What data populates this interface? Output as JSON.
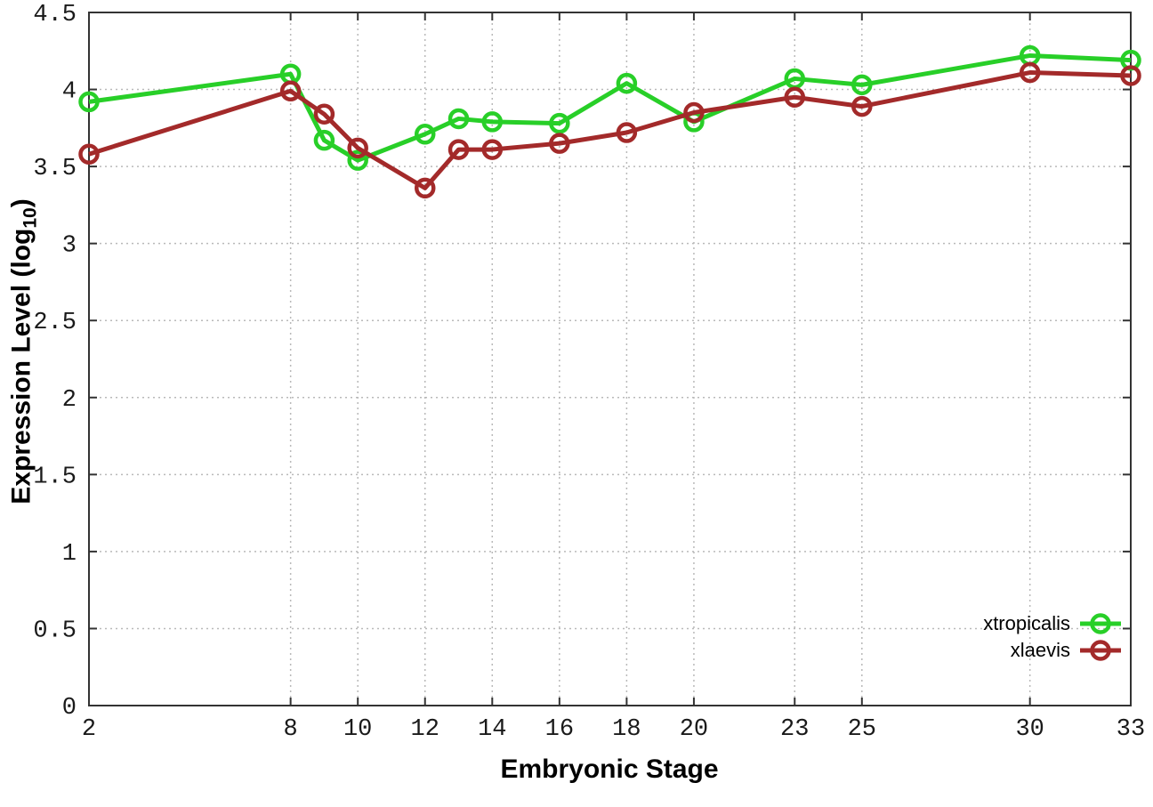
{
  "figure": {
    "xlabel": "Embryonic Stage",
    "ylabel_prefix": "Expression Level (log",
    "ylabel_sub": "10",
    "ylabel_suffix": ")",
    "background_color": "#ffffff",
    "border_color": "#333333",
    "grid_color": "#b9b9b9",
    "tick_label_color": "#1a1a1a"
  },
  "chart_data": {
    "type": "line",
    "title": "",
    "xlabel": "Embryonic Stage",
    "ylabel": "Expression Level (log10)",
    "x": [
      2,
      8,
      9,
      10,
      12,
      13,
      14,
      16,
      18,
      20,
      23,
      25,
      30,
      33
    ],
    "series": [
      {
        "name": "xtropicalis",
        "color": "#28cf28",
        "marker": "open-circle",
        "values": [
          3.92,
          4.1,
          3.67,
          3.54,
          3.71,
          3.81,
          3.79,
          3.78,
          4.04,
          3.79,
          4.07,
          4.03,
          4.22,
          4.19
        ]
      },
      {
        "name": "xlaevis",
        "color": "#a32a2a",
        "marker": "open-circle",
        "values": [
          3.58,
          3.99,
          3.84,
          3.62,
          3.36,
          3.61,
          3.61,
          3.65,
          3.72,
          3.85,
          3.95,
          3.89,
          4.11,
          4.09
        ]
      }
    ],
    "xlim": [
      2,
      33
    ],
    "ylim": [
      0,
      4.5
    ],
    "xticks": [
      2,
      8,
      10,
      12,
      14,
      16,
      18,
      20,
      23,
      25,
      30,
      33
    ],
    "yticks": [
      0,
      0.5,
      1,
      1.5,
      2,
      2.5,
      3,
      3.5,
      4,
      4.5
    ],
    "grid": true,
    "grid_style": "dotted",
    "legend_position": "bottom-right"
  }
}
